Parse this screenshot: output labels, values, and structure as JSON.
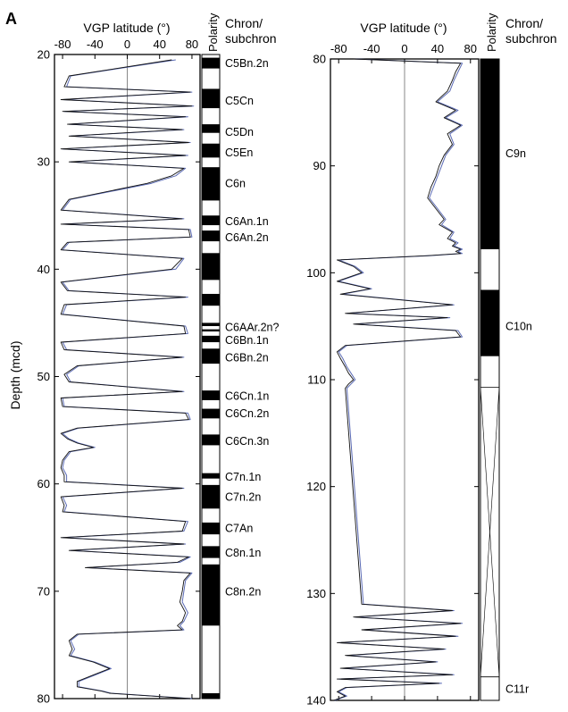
{
  "chart_data": [
    {
      "type": "line",
      "panel_label": "A",
      "xlabel": "VGP latitude (°)",
      "ylabel": "Depth (mcd)",
      "polarity_label": "Polarity",
      "chron_header": [
        "Chron/",
        "subchron"
      ],
      "xticks": [
        "-80",
        "-40",
        "0",
        "40",
        "80"
      ],
      "yticks": [
        "20",
        "30",
        "40",
        "50",
        "60",
        "70",
        "80"
      ],
      "xlim": [
        -90,
        90
      ],
      "ylim": [
        20,
        80
      ],
      "series": [
        {
          "color": "#5b6bb5",
          "x": [
            60,
            -70,
            -75,
            80,
            -80,
            82,
            -78,
            75,
            -72,
            70,
            -70,
            78,
            -80,
            75,
            -70,
            72,
            60,
            30,
            -70,
            -80,
            70,
            -80,
            78,
            80,
            -72,
            -80,
            70,
            60,
            -80,
            -72,
            75,
            -75,
            -80,
            72,
            75,
            -80,
            -75,
            70,
            -60,
            -75,
            -70,
            70,
            -80,
            -78,
            75,
            78,
            -60,
            -80,
            -72,
            -60,
            -40,
            -70,
            -78,
            -80,
            -75,
            -75,
            70,
            -80,
            -75,
            -78,
            75,
            70,
            -80,
            72,
            -70,
            78,
            65,
            -50,
            80,
            72,
            70,
            68,
            75,
            70,
            65,
            70,
            -60,
            -70,
            -65,
            -70,
            -40,
            -20,
            -40,
            -60,
            -60,
            -30,
            -20,
            40,
            80
          ],
          "y": [
            20.5,
            22.0,
            23.0,
            23.5,
            24.2,
            24.8,
            25.3,
            25.8,
            26.5,
            27.0,
            27.6,
            28.2,
            28.8,
            29.4,
            30.0,
            30.6,
            31.3,
            32.0,
            33.5,
            34.5,
            35.3,
            35.8,
            36.3,
            37.0,
            37.5,
            38.2,
            39.0,
            40.0,
            41.2,
            42.0,
            42.6,
            43.3,
            44.2,
            45.3,
            46.0,
            46.8,
            47.5,
            48.2,
            49.0,
            49.8,
            50.5,
            51.4,
            52.0,
            52.8,
            53.4,
            54.0,
            54.8,
            55.3,
            55.8,
            56.2,
            56.6,
            57.0,
            57.8,
            58.5,
            59.2,
            59.8,
            60.4,
            61.2,
            62.0,
            62.6,
            63.5,
            64.4,
            65.0,
            65.6,
            66.2,
            66.8,
            67.3,
            67.8,
            68.3,
            69.0,
            70.0,
            71.0,
            72.0,
            72.8,
            73.2,
            73.6,
            74.0,
            74.6,
            75.4,
            76.0,
            76.6,
            77.2,
            77.8,
            78.4,
            78.9,
            79.3,
            79.5,
            79.8,
            80.0
          ]
        },
        {
          "color": "#111111",
          "x": [
            55,
            -72,
            -78,
            78,
            -82,
            80,
            -80,
            72,
            -74,
            68,
            -72,
            76,
            -82,
            72,
            -72,
            70,
            55,
            25,
            -72,
            -82,
            68,
            -82,
            76,
            78,
            -74,
            -82,
            68,
            55,
            -82,
            -74,
            72,
            -78,
            -82,
            70,
            72,
            -82,
            -78,
            68,
            -62,
            -78,
            -72,
            68,
            -82,
            -80,
            72,
            76,
            -62,
            -82,
            -74,
            -62,
            -42,
            -72,
            -80,
            -82,
            -78,
            -78,
            68,
            -82,
            -78,
            -80,
            72,
            68,
            -82,
            70,
            -72,
            76,
            62,
            -52,
            78,
            70,
            68,
            65,
            72,
            68,
            62,
            68,
            -62,
            -72,
            -68,
            -72,
            -42,
            -22,
            -42,
            -62,
            -62,
            -32,
            -22,
            38,
            78
          ],
          "y": [
            20.5,
            22.0,
            23.0,
            23.5,
            24.2,
            24.8,
            25.3,
            25.8,
            26.5,
            27.0,
            27.6,
            28.2,
            28.8,
            29.4,
            30.0,
            30.6,
            31.3,
            32.0,
            33.5,
            34.5,
            35.3,
            35.8,
            36.3,
            37.0,
            37.5,
            38.2,
            39.0,
            40.0,
            41.2,
            42.0,
            42.6,
            43.3,
            44.2,
            45.3,
            46.0,
            46.8,
            47.5,
            48.2,
            49.0,
            49.8,
            50.5,
            51.4,
            52.0,
            52.8,
            53.4,
            54.0,
            54.8,
            55.3,
            55.8,
            56.2,
            56.6,
            57.0,
            57.8,
            58.5,
            59.2,
            59.8,
            60.4,
            61.2,
            62.0,
            62.6,
            63.5,
            64.4,
            65.0,
            65.6,
            66.2,
            66.8,
            67.3,
            67.8,
            68.3,
            69.0,
            70.0,
            71.0,
            72.0,
            72.8,
            73.2,
            73.6,
            74.0,
            74.6,
            75.4,
            76.0,
            76.6,
            77.2,
            77.8,
            78.4,
            78.9,
            79.3,
            79.5,
            79.8,
            80.0
          ]
        }
      ],
      "polarity_blocks": [
        {
          "top": 20.3,
          "bottom": 21.3,
          "type": "normal"
        },
        {
          "top": 23.2,
          "bottom": 25.0,
          "type": "normal"
        },
        {
          "top": 26.5,
          "bottom": 27.3,
          "type": "normal"
        },
        {
          "top": 28.3,
          "bottom": 29.6,
          "type": "normal"
        },
        {
          "top": 30.5,
          "bottom": 33.6,
          "type": "normal"
        },
        {
          "top": 35.0,
          "bottom": 35.9,
          "type": "normal"
        },
        {
          "top": 36.4,
          "bottom": 37.4,
          "type": "normal"
        },
        {
          "top": 38.5,
          "bottom": 41.0,
          "type": "normal"
        },
        {
          "top": 42.3,
          "bottom": 43.4,
          "type": "normal"
        },
        {
          "top": 45.0,
          "bottom": 45.3,
          "type": "normal"
        },
        {
          "top": 45.6,
          "bottom": 45.8,
          "type": "normal"
        },
        {
          "top": 46.2,
          "bottom": 46.8,
          "type": "normal"
        },
        {
          "top": 47.4,
          "bottom": 48.8,
          "type": "normal"
        },
        {
          "top": 51.3,
          "bottom": 52.2,
          "type": "normal"
        },
        {
          "top": 53.0,
          "bottom": 53.9,
          "type": "normal"
        },
        {
          "top": 55.4,
          "bottom": 56.4,
          "type": "normal"
        },
        {
          "top": 59.0,
          "bottom": 59.5,
          "type": "normal"
        },
        {
          "top": 60.1,
          "bottom": 62.3,
          "type": "normal"
        },
        {
          "top": 63.6,
          "bottom": 64.7,
          "type": "normal"
        },
        {
          "top": 65.8,
          "bottom": 66.9,
          "type": "normal"
        },
        {
          "top": 67.5,
          "bottom": 73.2,
          "type": "normal"
        },
        {
          "top": 79.5,
          "bottom": 80.0,
          "type": "normal"
        }
      ],
      "chron_labels": [
        {
          "label": "C5Bn.2n",
          "depth": 20.8
        },
        {
          "label": "C5Cn",
          "depth": 24.3
        },
        {
          "label": "C5Dn",
          "depth": 27.2
        },
        {
          "label": "C5En",
          "depth": 29.1
        },
        {
          "label": "C6n",
          "depth": 32.0
        },
        {
          "label": "C6An.1n",
          "depth": 35.5
        },
        {
          "label": "C6An.2n",
          "depth": 37.0
        },
        {
          "label": "C6AAr.2n?",
          "depth": 45.4
        },
        {
          "label": "C6Bn.1n",
          "depth": 46.6
        },
        {
          "label": "C6Bn.2n",
          "depth": 48.2
        },
        {
          "label": "C6Cn.1n",
          "depth": 51.8
        },
        {
          "label": "C6Cn.2n",
          "depth": 53.4
        },
        {
          "label": "C6Cn.3n",
          "depth": 56.0
        },
        {
          "label": "C7n.1n",
          "depth": 59.3
        },
        {
          "label": "C7n.2n",
          "depth": 61.2
        },
        {
          "label": "C7An",
          "depth": 64.1
        },
        {
          "label": "C8n.1n",
          "depth": 66.4
        },
        {
          "label": "C8n.2n",
          "depth": 70.0
        }
      ]
    },
    {
      "type": "line",
      "xlabel": "VGP latitude (°)",
      "polarity_label": "Polarity",
      "chron_header": [
        "Chron/",
        "subchron"
      ],
      "xticks": [
        "-80",
        "-40",
        "0",
        "40",
        "80"
      ],
      "yticks": [
        "80",
        "90",
        "100",
        "110",
        "120",
        "130",
        "140"
      ],
      "xlim": [
        -90,
        90
      ],
      "ylim": [
        80,
        140
      ],
      "series": [
        {
          "color": "#5b6bb5",
          "x": [
            -60,
            70,
            65,
            60,
            55,
            40,
            65,
            50,
            70,
            55,
            60,
            50,
            45,
            40,
            35,
            30,
            40,
            50,
            45,
            60,
            55,
            65,
            60,
            70,
            65,
            70,
            30,
            -80,
            -60,
            -50,
            -80,
            -40,
            -75,
            60,
            -70,
            55,
            -60,
            65,
            70,
            -70,
            -80,
            -75,
            -70,
            -65,
            -60,
            -65,
            -70,
            -50,
            60,
            -60,
            70,
            -50,
            65,
            -80,
            50,
            -70,
            40,
            -75,
            60,
            -80,
            45,
            -70,
            -80,
            -70,
            -85
          ],
          "y": [
            80.0,
            80.4,
            81.2,
            82.0,
            83.0,
            84.0,
            84.8,
            85.5,
            86.2,
            87.0,
            88.0,
            89.0,
            90.0,
            91.0,
            92.0,
            93.0,
            94.0,
            95.0,
            95.5,
            96.2,
            96.8,
            97.2,
            97.5,
            97.8,
            98.0,
            98.2,
            98.4,
            98.8,
            99.4,
            100.0,
            100.8,
            101.5,
            102.0,
            103.0,
            103.8,
            104.2,
            104.8,
            105.4,
            106.0,
            106.8,
            107.4,
            108.0,
            108.8,
            109.4,
            110.0,
            110.4,
            110.8,
            131.0,
            131.6,
            132.2,
            132.8,
            133.4,
            134.0,
            134.6,
            135.2,
            135.8,
            136.4,
            137.0,
            137.6,
            138.0,
            138.4,
            138.8,
            139.2,
            139.6,
            140.0
          ]
        },
        {
          "color": "#111111",
          "x": [
            -62,
            68,
            62,
            58,
            52,
            38,
            62,
            48,
            68,
            52,
            58,
            48,
            42,
            38,
            32,
            28,
            38,
            48,
            42,
            58,
            52,
            62,
            58,
            68,
            62,
            68,
            28,
            -82,
            -62,
            -52,
            -82,
            -42,
            -78,
            58,
            -72,
            52,
            -62,
            62,
            68,
            -72,
            -82,
            -78,
            -72,
            -68,
            -62,
            -68,
            -72,
            -52,
            58,
            -62,
            68,
            -52,
            62,
            -82,
            48,
            -72,
            38,
            -78,
            58,
            -82,
            42,
            -72,
            -82,
            -72,
            -86
          ],
          "y": [
            80.0,
            80.4,
            81.2,
            82.0,
            83.0,
            84.0,
            84.8,
            85.5,
            86.2,
            87.0,
            88.0,
            89.0,
            90.0,
            91.0,
            92.0,
            93.0,
            94.0,
            95.0,
            95.5,
            96.2,
            96.8,
            97.2,
            97.5,
            97.8,
            98.0,
            98.2,
            98.4,
            98.8,
            99.4,
            100.0,
            100.8,
            101.5,
            102.0,
            103.0,
            103.8,
            104.2,
            104.8,
            105.4,
            106.0,
            106.8,
            107.4,
            108.0,
            108.8,
            109.4,
            110.0,
            110.4,
            110.8,
            131.0,
            131.6,
            132.2,
            132.8,
            133.4,
            134.0,
            134.6,
            135.2,
            135.8,
            136.4,
            137.0,
            137.6,
            138.0,
            138.4,
            138.8,
            139.2,
            139.6,
            140.0
          ]
        }
      ],
      "polarity_blocks": [
        {
          "top": 80.0,
          "bottom": 97.8,
          "type": "normal"
        },
        {
          "top": 101.6,
          "bottom": 107.8,
          "type": "normal"
        },
        {
          "top": 110.7,
          "bottom": 137.8,
          "type": "uncertain"
        }
      ],
      "chron_labels": [
        {
          "label": "C9n",
          "depth": 88.8
        },
        {
          "label": "C10n",
          "depth": 105.0
        },
        {
          "label": "C11r",
          "depth": 138.9
        }
      ]
    }
  ]
}
